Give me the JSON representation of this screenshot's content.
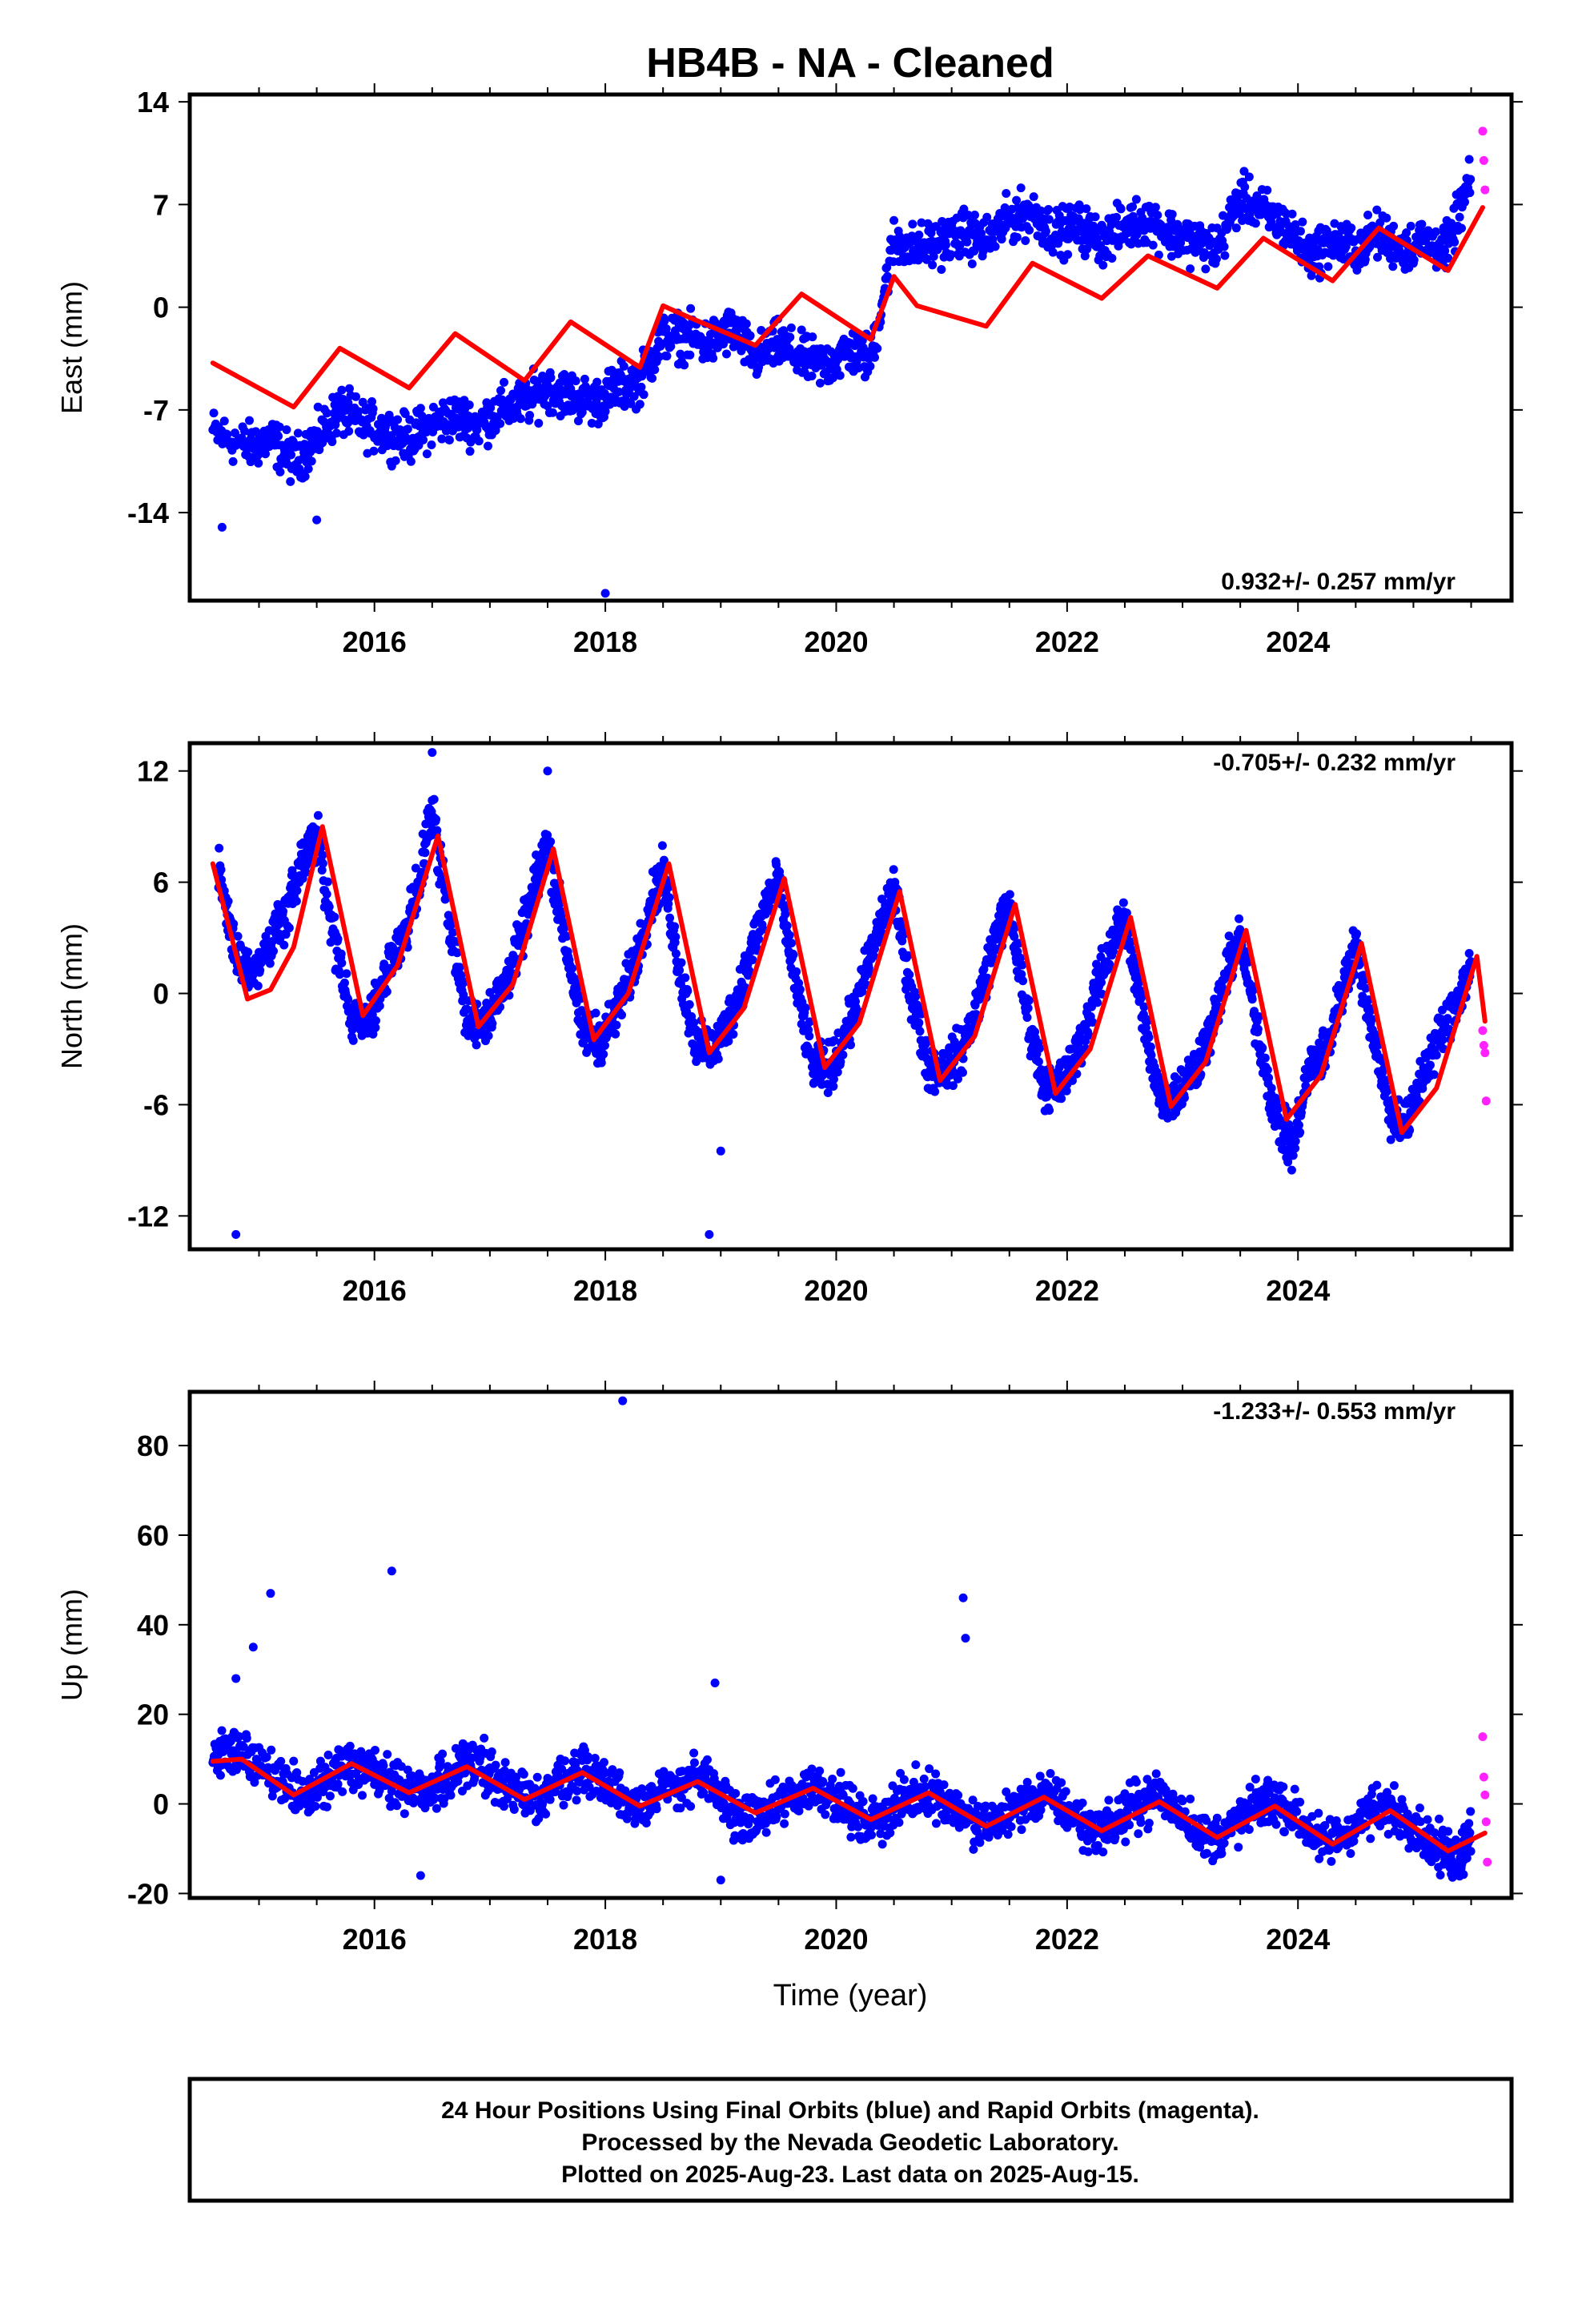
{
  "chart_data": {
    "title": "HB4B  - NA - Cleaned",
    "xlabel": "Time (year)",
    "xticks": [
      2016,
      2018,
      2020,
      2022,
      2024
    ],
    "xlim": [
      2014.4,
      2025.85
    ],
    "colors": {
      "final": "#0000ff",
      "rapid": "#ff22ff",
      "model": "#ff0000"
    },
    "panels": [
      {
        "name": "east",
        "type": "scatter",
        "ylabel": "East (mm)",
        "ylim": [
          -20,
          14.5
        ],
        "yticks": [
          14,
          7,
          0,
          -7,
          -14
        ],
        "rate_label": "0.932+/- 0.257 mm/yr",
        "rate_position": "bottom-right",
        "final_orbits": {
          "x": [
            2014.6,
            2014.9,
            2015.1,
            2015.3,
            2015.5,
            2015.7,
            2015.9,
            2016.1,
            2016.3,
            2016.5,
            2016.7,
            2016.9,
            2017.1,
            2017.3,
            2017.5,
            2017.7,
            2017.9,
            2018.1,
            2018.3,
            2018.5,
            2018.7,
            2018.9,
            2019.1,
            2019.3,
            2019.5,
            2019.7,
            2019.9,
            2020.1,
            2020.3,
            2020.5,
            2020.7,
            2020.9,
            2021.1,
            2021.3,
            2021.5,
            2021.7,
            2021.9,
            2022.1,
            2022.3,
            2022.5,
            2022.7,
            2022.9,
            2023.1,
            2023.3,
            2023.5,
            2023.7,
            2023.9,
            2024.1,
            2024.3,
            2024.5,
            2024.7,
            2024.9,
            2025.1,
            2025.3,
            2025.5
          ],
          "y": [
            -8.5,
            -9.5,
            -9,
            -10.5,
            -9,
            -7,
            -8,
            -8.5,
            -9,
            -8,
            -7.5,
            -8,
            -7,
            -6.5,
            -5.5,
            -6,
            -6.5,
            -5.5,
            -5,
            -2,
            -2,
            -2.5,
            -1.5,
            -3.5,
            -2.5,
            -3.5,
            -4,
            -3,
            -3.5,
            4.5,
            4,
            4.5,
            5,
            4.5,
            6,
            6.5,
            5,
            5.5,
            4.5,
            5.5,
            6,
            5,
            4.5,
            4,
            7.5,
            6.5,
            5.5,
            3.5,
            4.5,
            4,
            5,
            4,
            4.5,
            4,
            9
          ]
        },
        "rapid_orbits": {
          "x": [
            2025.6,
            2025.61,
            2025.62
          ],
          "y": [
            12,
            10,
            8
          ]
        },
        "outliers": {
          "x": [
            2014.68,
            2015.5,
            2018.0
          ],
          "y": [
            -15,
            -14.5,
            -19.5
          ]
        },
        "model_line": {
          "x": [
            2014.6,
            2015.3,
            2015.7,
            2016.3,
            2016.7,
            2017.3,
            2017.7,
            2018.3,
            2018.5,
            2018.7,
            2019.3,
            2019.7,
            2020.3,
            2020.5,
            2020.7,
            2021.3,
            2021.7,
            2022.3,
            2022.7,
            2023.3,
            2023.7,
            2024.3,
            2024.7,
            2025.3,
            2025.6
          ],
          "y": [
            -3.8,
            -6.8,
            -2.8,
            -5.5,
            -1.8,
            -5.0,
            -1.0,
            -4.1,
            0.1,
            -0.6,
            -2.6,
            0.9,
            -2.2,
            2.1,
            0.1,
            -1.3,
            3.0,
            0.6,
            3.5,
            1.3,
            4.7,
            1.8,
            5.4,
            2.5,
            6.8
          ]
        }
      },
      {
        "name": "north",
        "type": "scatter",
        "ylabel": "North (mm)",
        "ylim": [
          -13.8,
          13.5
        ],
        "yticks": [
          12,
          6,
          0,
          -6,
          -12
        ],
        "rate_label": "-0.705+/- 0.232 mm/yr",
        "rate_position": "top-right",
        "final_orbits": {
          "x": [
            2014.65,
            2014.8,
            2014.95,
            2015.1,
            2015.25,
            2015.4,
            2015.5,
            2015.65,
            2015.8,
            2015.95,
            2016.1,
            2016.25,
            2016.4,
            2016.5,
            2016.65,
            2016.8,
            2016.95,
            2017.1,
            2017.25,
            2017.4,
            2017.5,
            2017.65,
            2017.8,
            2017.95,
            2018.1,
            2018.25,
            2018.4,
            2018.5,
            2018.65,
            2018.8,
            2018.95,
            2019.1,
            2019.25,
            2019.4,
            2019.5,
            2019.65,
            2019.8,
            2019.95,
            2020.1,
            2020.25,
            2020.4,
            2020.5,
            2020.65,
            2020.8,
            2020.95,
            2021.1,
            2021.25,
            2021.4,
            2021.5,
            2021.65,
            2021.8,
            2021.95,
            2022.1,
            2022.25,
            2022.4,
            2022.5,
            2022.65,
            2022.8,
            2022.95,
            2023.1,
            2023.25,
            2023.4,
            2023.5,
            2023.65,
            2023.8,
            2023.95,
            2024.1,
            2024.25,
            2024.4,
            2024.5,
            2024.65,
            2024.8,
            2024.95,
            2025.1,
            2025.25,
            2025.4,
            2025.5
          ],
          "y": [
            6.5,
            2,
            1,
            3,
            4.5,
            7.5,
            8.5,
            3,
            -1.5,
            -1.5,
            1,
            3,
            6.5,
            10,
            4,
            -1.5,
            -1.5,
            0,
            2.5,
            6,
            8,
            3,
            -2,
            -2.5,
            -1,
            1.5,
            5,
            6.5,
            1,
            -3,
            -3,
            -1,
            2,
            5,
            6,
            0.5,
            -4,
            -4,
            -2,
            1,
            4,
            5.5,
            0,
            -4,
            -4,
            -3,
            0,
            3.5,
            4.5,
            -1,
            -5,
            -5,
            -3,
            0,
            3,
            4,
            -1,
            -5.5,
            -5.5,
            -4,
            -2,
            1.5,
            3,
            -2,
            -6.5,
            -8.5,
            -4,
            -3,
            0.5,
            2.5,
            -2,
            -6.5,
            -7,
            -4,
            -2,
            0,
            1.5
          ]
        },
        "rapid_orbits": {
          "x": [
            2025.6,
            2025.61,
            2025.62,
            2025.63
          ],
          "y": [
            -2,
            -2.8,
            -3.2,
            -5.8
          ]
        },
        "outliers": {
          "x": [
            2014.8,
            2018.9,
            2019.0,
            2016.5,
            2017.5
          ],
          "y": [
            -13,
            -13,
            -8.5,
            13,
            12
          ]
        },
        "model_line": {
          "x": [
            2014.6,
            2014.9,
            2015.1,
            2015.3,
            2015.55,
            2015.9,
            2016.2,
            2016.55,
            2016.9,
            2017.2,
            2017.55,
            2017.9,
            2018.2,
            2018.55,
            2018.9,
            2019.2,
            2019.55,
            2019.9,
            2020.2,
            2020.55,
            2020.9,
            2021.2,
            2021.55,
            2021.9,
            2022.2,
            2022.55,
            2022.9,
            2023.2,
            2023.55,
            2023.9,
            2024.2,
            2024.55,
            2024.9,
            2025.2,
            2025.55,
            2025.62
          ],
          "y": [
            7.0,
            -0.3,
            0.2,
            2.5,
            9.0,
            -1.2,
            1.5,
            8.5,
            -1.8,
            0.5,
            7.8,
            -2.5,
            0.0,
            7.0,
            -3.2,
            -0.8,
            6.2,
            -4.0,
            -1.6,
            5.5,
            -4.7,
            -2.3,
            4.8,
            -5.4,
            -3.0,
            4.1,
            -6.1,
            -3.7,
            3.4,
            -6.8,
            -4.4,
            2.7,
            -7.5,
            -5.1,
            2.0,
            -1.5
          ]
        }
      },
      {
        "name": "up",
        "type": "scatter",
        "ylabel": "Up (mm)",
        "ylim": [
          -21,
          92
        ],
        "yticks": [
          80,
          60,
          40,
          20,
          0,
          -20
        ],
        "rate_label": "-1.233+/- 0.553 mm/yr",
        "rate_position": "top-right",
        "final_orbits": {
          "x": [
            2014.6,
            2014.8,
            2015.0,
            2015.2,
            2015.4,
            2015.6,
            2015.8,
            2016.0,
            2016.2,
            2016.4,
            2016.6,
            2016.8,
            2017.0,
            2017.2,
            2017.4,
            2017.6,
            2017.8,
            2018.0,
            2018.2,
            2018.4,
            2018.6,
            2018.8,
            2019.0,
            2019.2,
            2019.4,
            2019.6,
            2019.8,
            2020.0,
            2020.2,
            2020.4,
            2020.6,
            2020.8,
            2021.0,
            2021.2,
            2021.4,
            2021.6,
            2021.8,
            2022.0,
            2022.2,
            2022.4,
            2022.6,
            2022.8,
            2023.0,
            2023.2,
            2023.4,
            2023.6,
            2023.8,
            2024.0,
            2024.2,
            2024.4,
            2024.6,
            2024.8,
            2025.0,
            2025.2,
            2025.4,
            2025.5
          ],
          "y": [
            10,
            12,
            8,
            4,
            1,
            6,
            9,
            7,
            4,
            2,
            5,
            9,
            8,
            2,
            1,
            5,
            8,
            5,
            0,
            1,
            4,
            6,
            1,
            -4,
            -2,
            1,
            4,
            2,
            -4,
            -3,
            1,
            3,
            0,
            -5,
            -4,
            0,
            2,
            -1,
            -6,
            -5,
            0,
            2,
            -2,
            -8,
            -6,
            -1,
            1,
            -3,
            -9,
            -7,
            -2,
            -1,
            -4,
            -10,
            -12,
            -5
          ]
        },
        "rapid_orbits": {
          "x": [
            2025.6,
            2025.61,
            2025.62,
            2025.63,
            2025.64
          ],
          "y": [
            15,
            6,
            2,
            -4,
            -13
          ]
        },
        "outliers": {
          "x": [
            2014.8,
            2014.95,
            2015.1,
            2016.15,
            2018.15,
            2018.95,
            2021.1,
            2021.12,
            2016.4,
            2019.0
          ],
          "y": [
            28,
            35,
            47,
            52,
            90,
            27,
            46,
            37,
            -16,
            -17
          ]
        },
        "model_line": {
          "x": [
            2014.6,
            2014.85,
            2015.3,
            2015.8,
            2016.3,
            2016.8,
            2017.3,
            2017.8,
            2018.3,
            2018.8,
            2019.3,
            2019.8,
            2020.3,
            2020.8,
            2021.3,
            2021.8,
            2022.3,
            2022.8,
            2023.3,
            2023.8,
            2024.3,
            2024.8,
            2025.3,
            2025.62
          ],
          "y": [
            9.5,
            10.0,
            2.0,
            9.0,
            2.5,
            8.3,
            1.0,
            7.0,
            -0.5,
            5.0,
            -2.0,
            3.5,
            -3.5,
            2.5,
            -5.0,
            1.5,
            -6.0,
            0.5,
            -7.5,
            -0.5,
            -9.0,
            -1.5,
            -10.5,
            -6.5
          ]
        }
      }
    ],
    "caption": [
      "24 Hour Positions Using Final Orbits (blue) and Rapid Orbits (magenta).",
      "Processed by the Nevada Geodetic Laboratory.",
      "Plotted on 2025-Aug-23. Last data on 2025-Aug-15."
    ]
  }
}
